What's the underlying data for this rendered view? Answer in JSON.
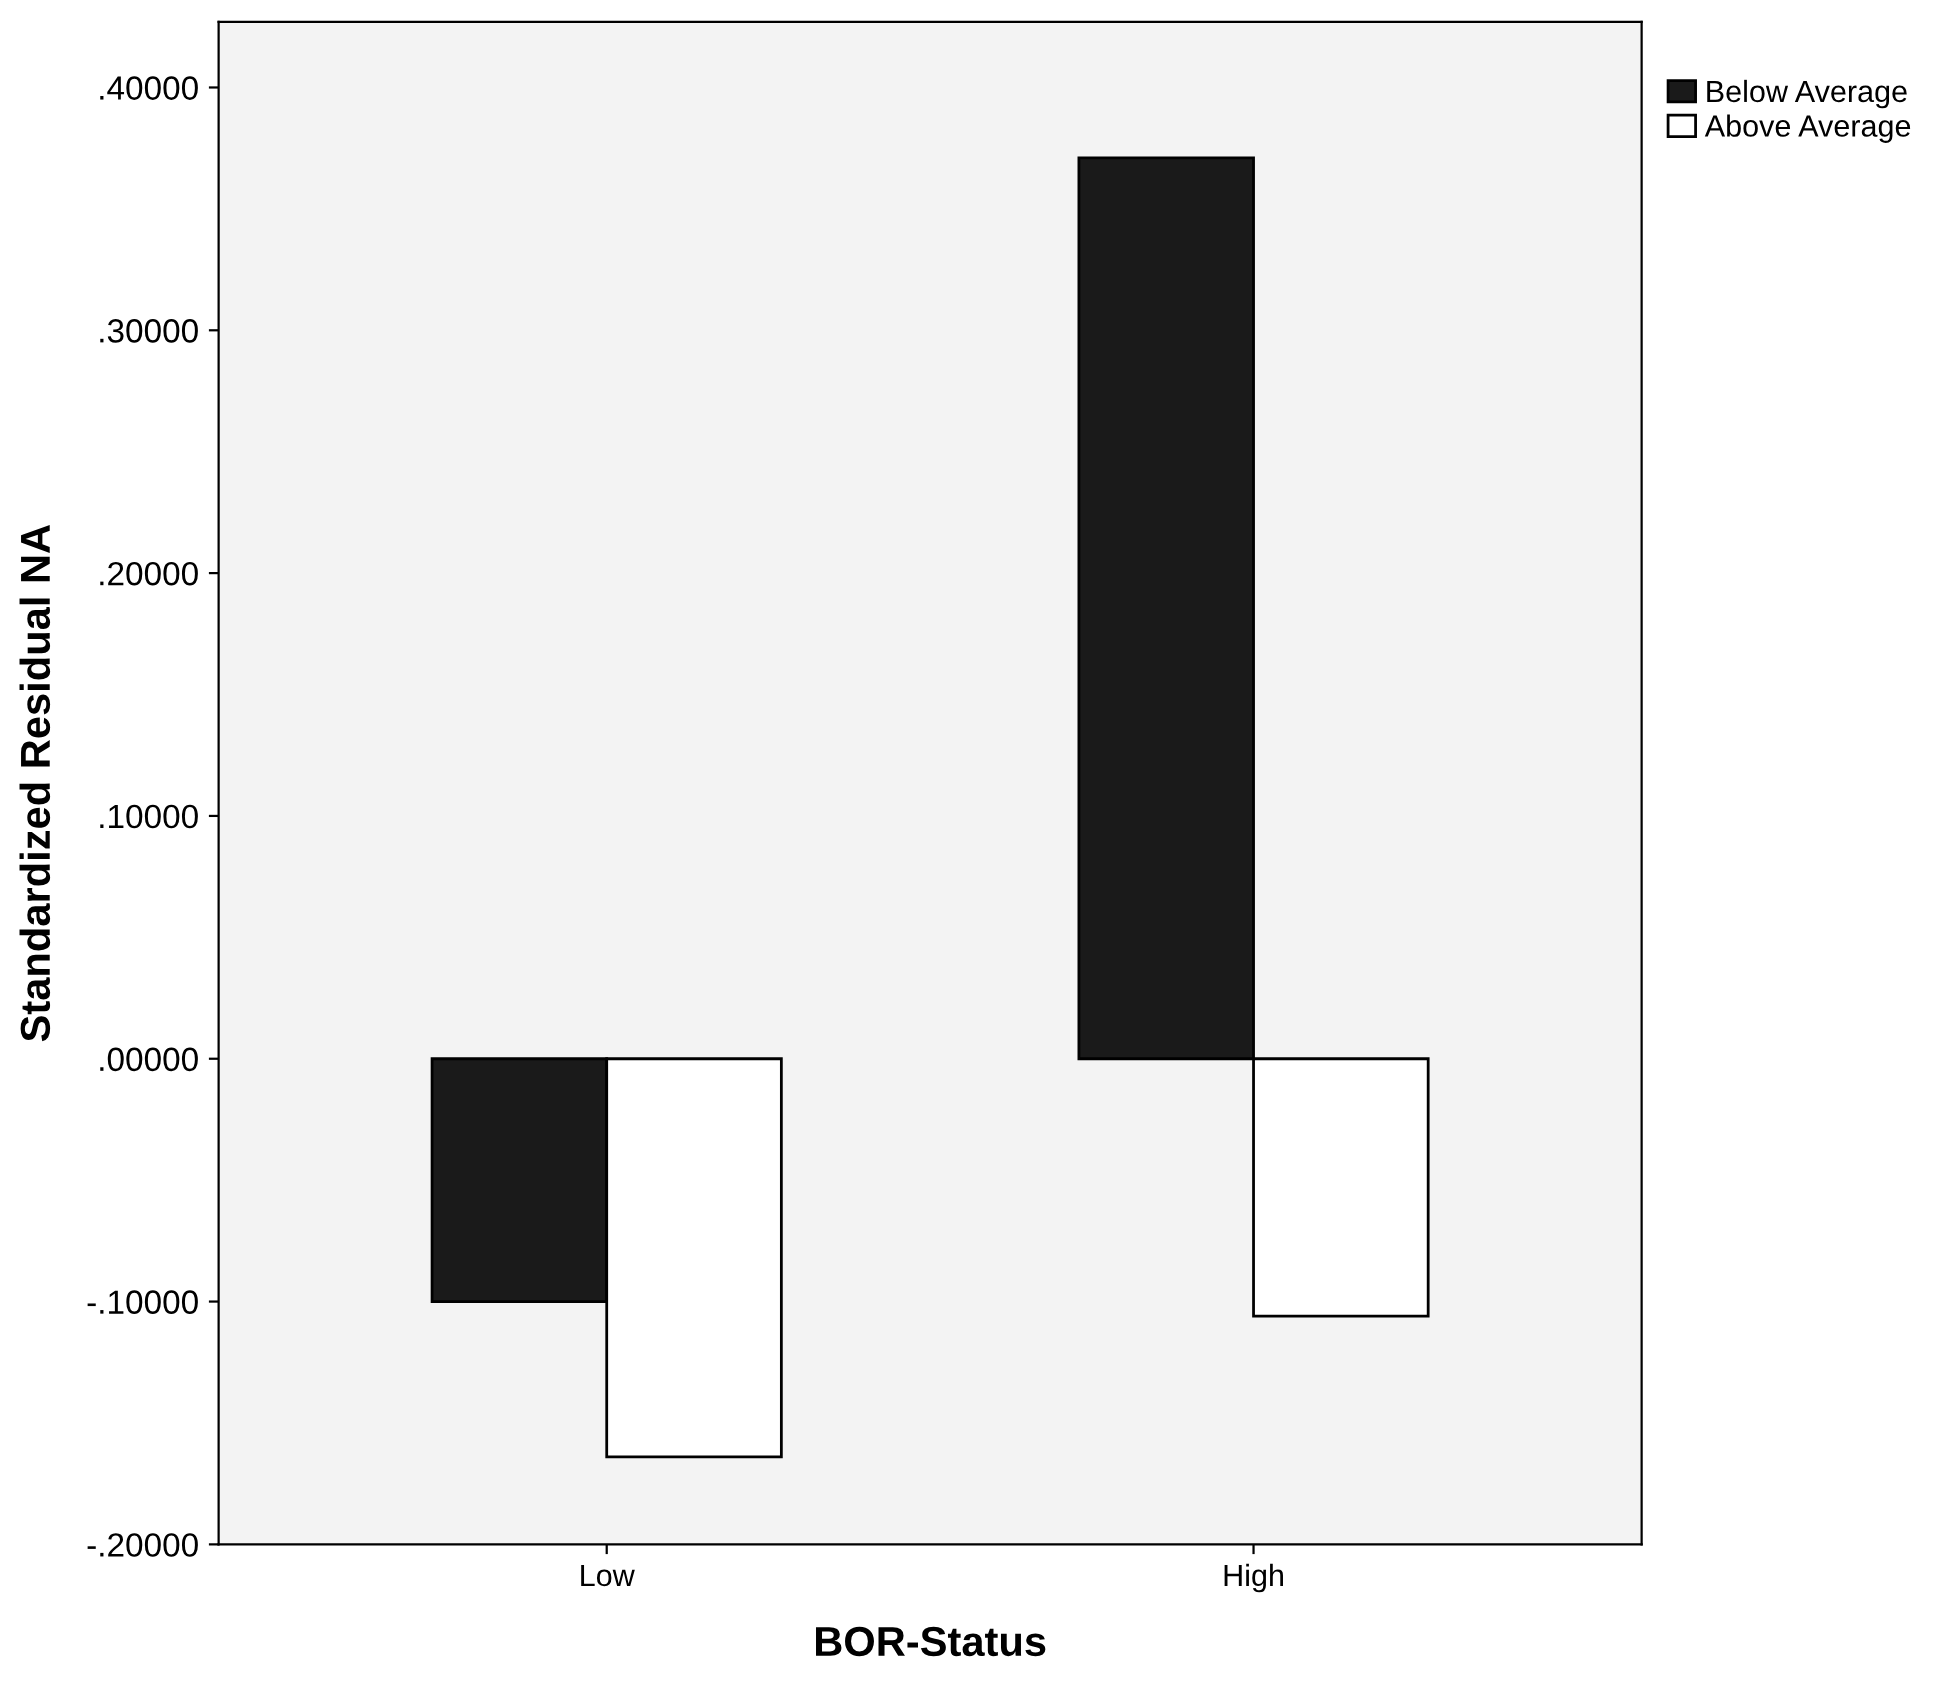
{
  "chart_data": {
    "type": "bar",
    "xlabel": "BOR-Status",
    "ylabel": "Standardized Residual NA",
    "categories": [
      "Low",
      "High"
    ],
    "series": [
      {
        "name": "Below Average",
        "color": "#1a1a1a",
        "values": [
          -0.1,
          0.371
        ]
      },
      {
        "name": "Above Average",
        "color": "#ffffff",
        "values": [
          -0.164,
          -0.106
        ]
      }
    ],
    "ylim": [
      -0.2,
      0.427
    ],
    "yticks": [
      {
        "value": -0.2,
        "label": "-.20000"
      },
      {
        "value": -0.1,
        "label": "-.10000"
      },
      {
        "value": 0,
        "label": ".00000"
      },
      {
        "value": 0.1,
        "label": ".10000"
      },
      {
        "value": 0.2,
        "label": ".20000"
      },
      {
        "value": 0.3,
        "label": ".30000"
      },
      {
        "value": 0.4,
        "label": ".40000"
      }
    ],
    "grid": false,
    "legend": "top right"
  }
}
